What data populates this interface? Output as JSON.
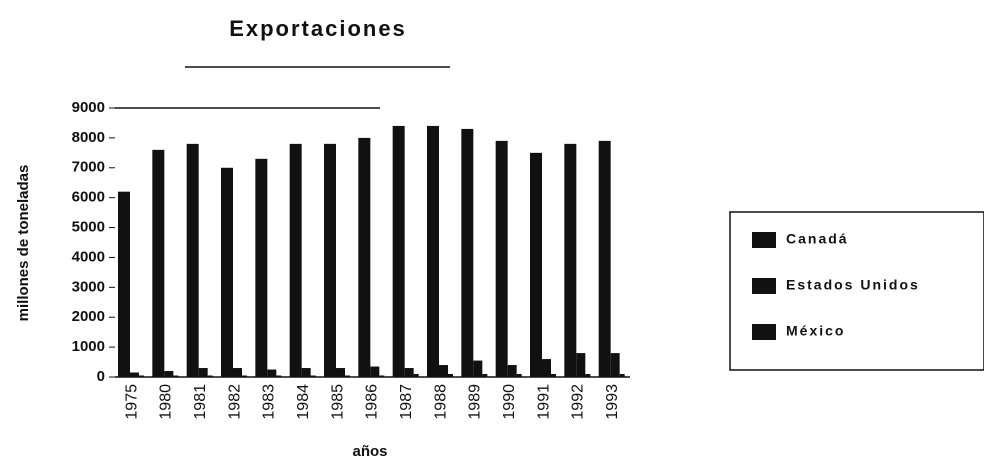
{
  "chart_data": {
    "type": "bar",
    "title": "Exportaciones",
    "x_label": "años",
    "y_label": "millones de toneladas",
    "categories": [
      "1975",
      "1980",
      "1981",
      "1982",
      "1983",
      "1984",
      "1985",
      "1986",
      "1987",
      "1988",
      "1989",
      "1990",
      "1991",
      "1992",
      "1993"
    ],
    "series": [
      {
        "name": "Canadá",
        "color": "#111111",
        "values": [
          6200,
          7600,
          7800,
          7000,
          7300,
          7800,
          7800,
          8000,
          8400,
          8400,
          8300,
          7900,
          7500,
          7800,
          7900
        ]
      },
      {
        "name": "Estados Unidos",
        "color": "#111111",
        "values": [
          150,
          200,
          300,
          300,
          250,
          300,
          300,
          350,
          300,
          400,
          550,
          400,
          600,
          800,
          800
        ]
      },
      {
        "name": "México",
        "color": "#111111",
        "values": [
          50,
          50,
          50,
          50,
          50,
          50,
          50,
          50,
          100,
          100,
          100,
          100,
          100,
          100,
          100
        ]
      }
    ],
    "ylim": [
      0,
      9000
    ],
    "yticks": [
      0,
      1000,
      2000,
      3000,
      4000,
      5000,
      6000,
      7000,
      8000,
      9000
    ],
    "legend": "right"
  }
}
